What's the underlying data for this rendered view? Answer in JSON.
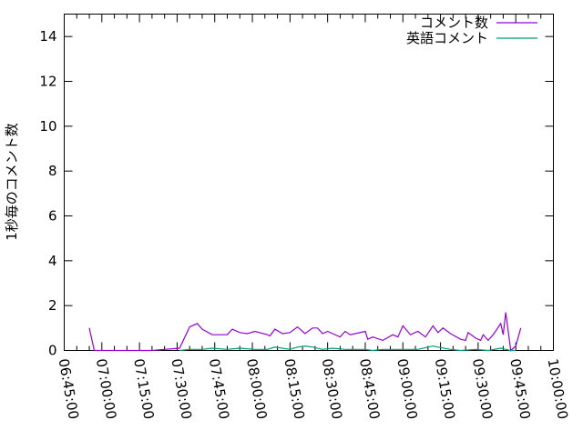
{
  "chart_data": {
    "type": "line",
    "title": "",
    "xlabel": "",
    "ylabel": "1秒毎のコメント数",
    "xlim": [
      "06:45:00",
      "10:00:00"
    ],
    "ylim": [
      0,
      15
    ],
    "x_ticks": [
      "06:45:00",
      "07:00:00",
      "07:15:00",
      "07:30:00",
      "07:45:00",
      "08:00:00",
      "08:15:00",
      "08:30:00",
      "08:45:00",
      "09:00:00",
      "09:15:00",
      "09:30:00",
      "09:45:00",
      "10:00:00"
    ],
    "y_ticks": [
      0,
      2,
      4,
      6,
      8,
      10,
      12,
      14
    ],
    "grid": false,
    "legend_position": "top-right",
    "series": [
      {
        "name": "コメント数",
        "color": "#9400d3",
        "x": [
          "06:55",
          "06:57",
          "07:01",
          "07:10",
          "07:15",
          "07:20",
          "07:25",
          "07:31",
          "07:35",
          "07:38",
          "07:40",
          "07:44",
          "07:50",
          "07:52",
          "07:55",
          "07:58",
          "08:01",
          "08:06",
          "08:07",
          "08:09",
          "08:12",
          "08:15",
          "08:18",
          "08:21",
          "08:24",
          "08:26",
          "08:28",
          "08:30",
          "08:32",
          "08:35",
          "08:37",
          "08:39",
          "08:45",
          "08:46",
          "08:48",
          "08:52",
          "08:56",
          "08:58",
          "09:00",
          "09:03",
          "09:06",
          "09:09",
          "09:12",
          "09:14",
          "09:16",
          "09:19",
          "09:23",
          "09:25",
          "09:26",
          "09:29",
          "09:31",
          "09:32",
          "09:34",
          "09:36",
          "09:39",
          "09:40",
          "09:41",
          "09:43",
          "09:45",
          "09:47"
        ],
        "y": [
          1.0,
          0.0,
          0.0,
          0.0,
          0.0,
          0.0,
          0.05,
          0.1,
          1.05,
          1.2,
          0.95,
          0.7,
          0.7,
          0.95,
          0.8,
          0.75,
          0.85,
          0.7,
          0.65,
          0.95,
          0.75,
          0.8,
          1.05,
          0.75,
          1.0,
          1.0,
          0.75,
          0.85,
          0.75,
          0.6,
          0.85,
          0.7,
          0.85,
          0.5,
          0.6,
          0.45,
          0.7,
          0.6,
          1.1,
          0.7,
          0.85,
          0.6,
          1.1,
          0.8,
          1.0,
          0.75,
          0.5,
          0.45,
          0.8,
          0.55,
          0.45,
          0.7,
          0.45,
          0.7,
          1.2,
          0.7,
          1.7,
          0.0,
          0.2,
          1.0
        ]
      },
      {
        "name": "英語コメント",
        "color": "#009e73",
        "x": [
          "07:31",
          "07:35",
          "07:40",
          "07:44",
          "07:50",
          "07:55",
          "08:01",
          "08:06",
          "08:09",
          "08:15",
          "08:18",
          "08:21",
          "08:24",
          "08:28",
          "08:32",
          "08:37",
          "08:45",
          "08:48",
          "08:52",
          "08:56",
          "09:00",
          "09:06",
          "09:12",
          "09:14",
          "09:19",
          "09:23",
          "09:29",
          "09:34",
          "09:39",
          "09:41",
          "09:43",
          "09:45"
        ],
        "y": [
          0.0,
          0.05,
          0.05,
          0.1,
          0.05,
          0.1,
          0.05,
          0.05,
          0.15,
          0.05,
          0.15,
          0.2,
          0.15,
          0.05,
          0.1,
          0.05,
          0.05,
          0.0,
          0.05,
          0.05,
          0.05,
          0.05,
          0.2,
          0.15,
          0.05,
          0.0,
          0.05,
          0.0,
          0.1,
          0.05,
          0.0,
          0.0
        ]
      }
    ]
  }
}
